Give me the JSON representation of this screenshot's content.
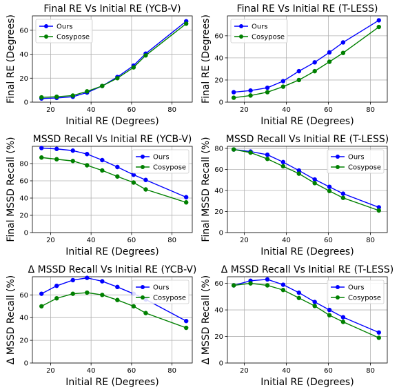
{
  "colors": {
    "ours": "#0000ff",
    "cosypose": "#008000",
    "grid": "#b0b0b0"
  },
  "chart_data": [
    {
      "type": "line",
      "title": "Final RE Vs Initial RE (YCB-V)",
      "xlabel": "Initial RE (Degrees)",
      "ylabel": "Final RE (Degrees)",
      "xlim": [
        11,
        90
      ],
      "ylim": [
        0,
        72
      ],
      "xticks": [
        20,
        40,
        60,
        80
      ],
      "yticks": [
        0,
        20,
        40,
        60
      ],
      "grid": true,
      "legend": "top-left",
      "series": [
        {
          "name": "Ours",
          "color": "#0000ff",
          "x": [
            15.5,
            23,
            31,
            38,
            45.5,
            53,
            61,
            67,
            87
          ],
          "y": [
            3,
            3.5,
            4.5,
            8,
            13.5,
            21,
            30.5,
            40.5,
            67.5
          ]
        },
        {
          "name": "Cosypose",
          "color": "#008000",
          "x": [
            15.5,
            23,
            31,
            38,
            45.5,
            53,
            61,
            67,
            87
          ],
          "y": [
            4,
            4.5,
            5.5,
            9,
            13.5,
            20,
            29,
            39,
            65.5
          ]
        }
      ]
    },
    {
      "type": "line",
      "title": "Final RE Vs Initial RE (T-LESS)",
      "xlabel": "Initial RE (Degrees)",
      "ylabel": "Final RE (Degrees)",
      "xlim": [
        12,
        88
      ],
      "ylim": [
        0,
        78
      ],
      "xticks": [
        20,
        40,
        60,
        80
      ],
      "yticks": [
        0,
        20,
        40,
        60
      ],
      "grid": true,
      "legend": "top-left",
      "series": [
        {
          "name": "Ours",
          "color": "#0000ff",
          "x": [
            15,
            23,
            31,
            38.5,
            46,
            53.5,
            60.5,
            67,
            84
          ],
          "y": [
            9,
            10.5,
            13,
            19,
            28,
            36,
            45,
            54,
            74
          ]
        },
        {
          "name": "Cosypose",
          "color": "#008000",
          "x": [
            15,
            23,
            31,
            38.5,
            46,
            53.5,
            60.5,
            67,
            84
          ],
          "y": [
            4,
            6,
            9,
            14,
            20,
            28,
            36.5,
            44.5,
            68
          ]
        }
      ]
    },
    {
      "type": "line",
      "title": "MSSD Recall Vs Initial RE (YCB-V)",
      "xlabel": "Initial RE (Degrees)",
      "ylabel": "Final MSSD Recall (%)",
      "xlim": [
        11,
        90
      ],
      "ylim": [
        0,
        100
      ],
      "xticks": [
        20,
        40,
        60,
        80
      ],
      "yticks": [
        0,
        20,
        40,
        60,
        80
      ],
      "grid": true,
      "legend": "top-right",
      "series": [
        {
          "name": "Ours",
          "color": "#0000ff",
          "x": [
            15.5,
            23,
            31,
            38,
            45.5,
            53,
            61,
            67,
            87
          ],
          "y": [
            98,
            97,
            95,
            91,
            84,
            76,
            67,
            61,
            41
          ]
        },
        {
          "name": "Cosypose",
          "color": "#008000",
          "x": [
            15.5,
            23,
            31,
            38,
            45.5,
            53,
            61,
            67,
            87
          ],
          "y": [
            87,
            85,
            83,
            78,
            72,
            65,
            58,
            50,
            35
          ]
        }
      ]
    },
    {
      "type": "line",
      "title": "MSSD Recall Vs Initial RE (T-LESS)",
      "xlabel": "Initial RE (Degrees)",
      "ylabel": "Final MSSD Recall (%)",
      "xlim": [
        12,
        88
      ],
      "ylim": [
        0,
        82
      ],
      "xticks": [
        20,
        40,
        60,
        80
      ],
      "yticks": [
        0,
        20,
        40,
        60,
        80
      ],
      "grid": true,
      "legend": "top-right",
      "series": [
        {
          "name": "Ours",
          "color": "#0000ff",
          "x": [
            15,
            23,
            31,
            38.5,
            46,
            53.5,
            60.5,
            67,
            84
          ],
          "y": [
            79,
            77,
            74,
            67,
            59,
            50.5,
            43.5,
            37,
            24
          ]
        },
        {
          "name": "Cosypose",
          "color": "#008000",
          "x": [
            15,
            23,
            31,
            38.5,
            46,
            53.5,
            60.5,
            67,
            84
          ],
          "y": [
            79,
            76,
            70,
            63,
            56,
            47,
            39.5,
            33,
            21
          ]
        }
      ]
    },
    {
      "type": "line",
      "title": "Δ MSSD Recall Vs Initial RE (YCB-V)",
      "xlabel": "Initial RE (Degrees)",
      "ylabel": "Δ MSSD Recall (%)",
      "xlim": [
        11,
        90
      ],
      "ylim": [
        0,
        76
      ],
      "xticks": [
        20,
        40,
        60,
        80
      ],
      "yticks": [
        0,
        20,
        40,
        60
      ],
      "grid": true,
      "legend": "top-right",
      "series": [
        {
          "name": "Ours",
          "color": "#0000ff",
          "x": [
            15.5,
            23,
            31,
            38,
            45.5,
            53,
            61,
            67,
            87
          ],
          "y": [
            61,
            68,
            73,
            75,
            72,
            67,
            61,
            56,
            37
          ]
        },
        {
          "name": "Cosypose",
          "color": "#008000",
          "x": [
            15.5,
            23,
            31,
            38,
            45.5,
            53,
            61,
            67,
            87
          ],
          "y": [
            50,
            57,
            61,
            62,
            60,
            55.5,
            50,
            44,
            31
          ]
        }
      ]
    },
    {
      "type": "line",
      "title": "Δ MSSD Recall Vs Initial RE (T-LESS)",
      "xlabel": "Initial RE (Degrees)",
      "ylabel": "Δ MSSD Recall (%)",
      "xlim": [
        12,
        88
      ],
      "ylim": [
        0,
        65
      ],
      "xticks": [
        20,
        40,
        60,
        80
      ],
      "yticks": [
        0,
        20,
        40,
        60
      ],
      "grid": true,
      "legend": "top-right",
      "series": [
        {
          "name": "Ours",
          "color": "#0000ff",
          "x": [
            15,
            23,
            31,
            38.5,
            46,
            53.5,
            60.5,
            67,
            84
          ],
          "y": [
            58.5,
            62,
            63,
            59,
            53,
            46,
            40,
            34.5,
            23
          ]
        },
        {
          "name": "Cosypose",
          "color": "#008000",
          "x": [
            15,
            23,
            31,
            38.5,
            46,
            53.5,
            60.5,
            67,
            84
          ],
          "y": [
            58.5,
            60,
            58.5,
            55,
            49,
            43,
            36,
            31,
            19
          ]
        }
      ]
    }
  ]
}
